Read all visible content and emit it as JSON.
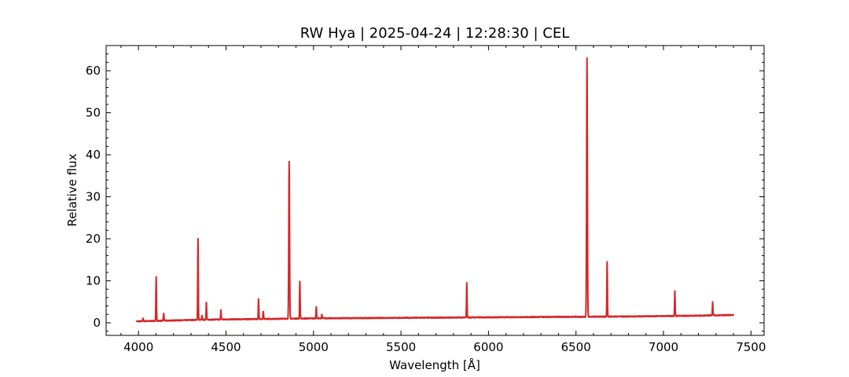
{
  "chart_data": {
    "type": "line",
    "title": "RW Hya | 2025-04-24 | 12:28:30 | CEL",
    "xlabel": "Wavelength [Å]",
    "ylabel": "Relative flux",
    "xlim": [
      3815,
      7575
    ],
    "ylim": [
      -3,
      66
    ],
    "xticks": [
      4000,
      4500,
      5000,
      5500,
      6000,
      6500,
      7000,
      7500
    ],
    "yticks": [
      0,
      10,
      20,
      30,
      40,
      50,
      60
    ],
    "grid": false,
    "legend": "none",
    "series_color": "#d62728",
    "continuum": [
      [
        3990,
        0.35
      ],
      [
        4100,
        0.45
      ],
      [
        4200,
        0.55
      ],
      [
        4300,
        0.65
      ],
      [
        4400,
        0.75
      ],
      [
        4500,
        0.8
      ],
      [
        4600,
        0.85
      ],
      [
        4700,
        0.9
      ],
      [
        4800,
        0.95
      ],
      [
        4900,
        1.0
      ],
      [
        5000,
        1.05
      ],
      [
        5200,
        1.1
      ],
      [
        5400,
        1.15
      ],
      [
        5600,
        1.2
      ],
      [
        5800,
        1.25
      ],
      [
        6000,
        1.3
      ],
      [
        6200,
        1.35
      ],
      [
        6400,
        1.4
      ],
      [
        6600,
        1.45
      ],
      [
        6800,
        1.5
      ],
      [
        7000,
        1.6
      ],
      [
        7200,
        1.7
      ],
      [
        7400,
        1.85
      ]
    ],
    "emission_lines": [
      {
        "x": 4026,
        "peak": 1.1
      },
      {
        "x": 4101,
        "peak": 11.0
      },
      {
        "x": 4144,
        "peak": 2.3
      },
      {
        "x": 4340,
        "peak": 20.0
      },
      {
        "x": 4363,
        "peak": 1.8
      },
      {
        "x": 4388,
        "peak": 4.8
      },
      {
        "x": 4471,
        "peak": 3.0
      },
      {
        "x": 4686,
        "peak": 5.6
      },
      {
        "x": 4713,
        "peak": 2.7
      },
      {
        "x": 4861,
        "peak": 38.4
      },
      {
        "x": 4922,
        "peak": 9.8
      },
      {
        "x": 5016,
        "peak": 3.9
      },
      {
        "x": 5048,
        "peak": 2.0
      },
      {
        "x": 5876,
        "peak": 9.5
      },
      {
        "x": 6563,
        "peak": 63.0
      },
      {
        "x": 6678,
        "peak": 14.5
      },
      {
        "x": 7065,
        "peak": 7.5
      },
      {
        "x": 7281,
        "peak": 4.9
      }
    ]
  }
}
